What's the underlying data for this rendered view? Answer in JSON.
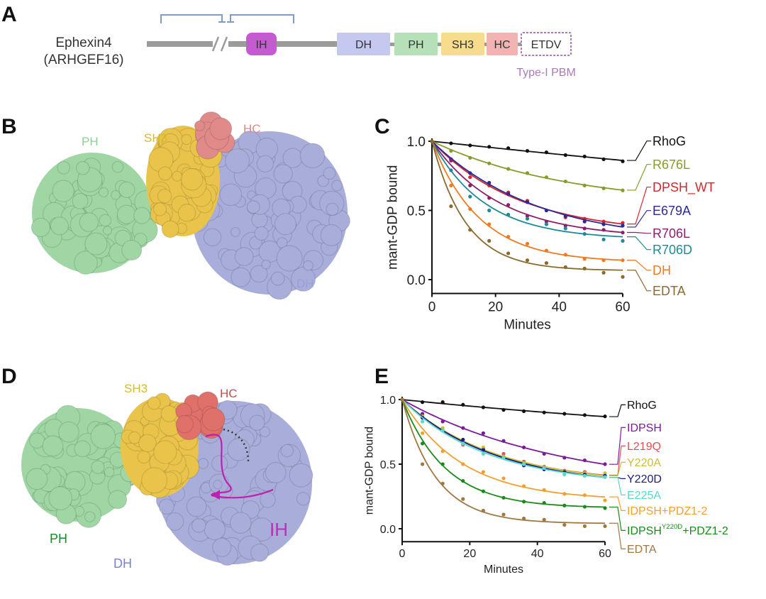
{
  "panel_labels": [
    "A",
    "B",
    "C",
    "D",
    "E"
  ],
  "panel_a": {
    "protein_name": "Ephexin4",
    "protein_alias": "(ARHGEF16)",
    "domains": [
      {
        "label": "IH",
        "color": "#c45bd0"
      },
      {
        "label": "DH",
        "color": "#c5c8ef"
      },
      {
        "label": "PH",
        "color": "#b5e0b8"
      },
      {
        "label": "SH3",
        "color": "#f7dc8e"
      },
      {
        "label": "HC",
        "color": "#f2b3b3"
      },
      {
        "label": "ETDV",
        "color": "#ffffff"
      }
    ],
    "motif_label": "Type-I PBM",
    "motif_color": "#a87bb5",
    "bracket_color": "#7f9cc4"
  },
  "panel_b": {
    "labels": [
      {
        "text": "PH",
        "color": "#8fcf96"
      },
      {
        "text": "SH3",
        "color": "#d9b730"
      },
      {
        "text": "HC",
        "color": "#d98b8b"
      },
      {
        "text": "DH",
        "color": "#9a9fd6"
      }
    ]
  },
  "panel_d": {
    "labels": [
      {
        "text": "SH3",
        "color": "#d9b730"
      },
      {
        "text": "HC",
        "color": "#c0504d"
      },
      {
        "text": "PH",
        "color": "#1a8a2a"
      },
      {
        "text": "DH",
        "color": "#7a80cc"
      },
      {
        "text": "IH",
        "color": "#c02cb8"
      }
    ]
  },
  "chart_data": [
    {
      "type": "line",
      "panel": "C",
      "xlabel": "Minutes",
      "ylabel": "mant-GDP bound",
      "xlim": [
        0,
        60
      ],
      "ylim": [
        -0.1,
        1.0
      ],
      "xticks": [
        0,
        20,
        40,
        60
      ],
      "yticks": [
        "0.0",
        "0.5",
        "1.0"
      ],
      "x": [
        0,
        6,
        12,
        18,
        24,
        30,
        36,
        42,
        48,
        54,
        60
      ],
      "series": [
        {
          "name": "RhoG",
          "color": "#111111",
          "values": [
            1,
            0.985,
            0.97,
            0.96,
            0.95,
            0.93,
            0.92,
            0.9,
            0.89,
            0.87,
            0.855
          ]
        },
        {
          "name": "R676L",
          "color": "#8a9a2a",
          "values": [
            1,
            0.93,
            0.88,
            0.84,
            0.8,
            0.77,
            0.74,
            0.71,
            0.68,
            0.66,
            0.645
          ]
        },
        {
          "name": "DPSH_WT",
          "color": "#d7262b",
          "values": [
            1,
            0.87,
            0.74,
            0.68,
            0.63,
            0.57,
            0.5,
            0.45,
            0.44,
            0.42,
            0.41
          ]
        },
        {
          "name": "E679A",
          "color": "#2a2a9a",
          "values": [
            1,
            0.87,
            0.77,
            0.7,
            0.62,
            0.56,
            0.5,
            0.46,
            0.42,
            0.4,
            0.39
          ]
        },
        {
          "name": "R706L",
          "color": "#8e1e6a",
          "values": [
            1,
            0.86,
            0.68,
            0.59,
            0.54,
            0.46,
            0.42,
            0.39,
            0.37,
            0.36,
            0.34
          ]
        },
        {
          "name": "R706D",
          "color": "#1e8a96",
          "values": [
            1,
            0.79,
            0.6,
            0.5,
            0.47,
            0.44,
            0.4,
            0.37,
            0.33,
            0.29,
            0.28
          ]
        },
        {
          "name": "DH",
          "color": "#f07a22",
          "values": [
            1,
            0.68,
            0.51,
            0.4,
            0.31,
            0.26,
            0.21,
            0.18,
            0.15,
            0.14,
            0.14
          ]
        },
        {
          "name": "EDTA",
          "color": "#8a6a2e",
          "values": [
            1,
            0.53,
            0.36,
            0.28,
            0.19,
            0.14,
            0.12,
            0.09,
            0.08,
            0.05,
            0.02
          ]
        }
      ]
    },
    {
      "type": "line",
      "panel": "E",
      "xlabel": "Minutes",
      "ylabel": "mant-GDP bound",
      "xlim": [
        0,
        60
      ],
      "ylim": [
        -0.1,
        1.0
      ],
      "xticks": [
        0,
        20,
        40,
        60
      ],
      "yticks": [
        "0.0",
        "0.5",
        "1.0"
      ],
      "x": [
        0,
        6,
        12,
        18,
        24,
        30,
        36,
        42,
        48,
        54,
        60
      ],
      "series": [
        {
          "name": "RhoG",
          "color": "#111111",
          "values": [
            1,
            0.98,
            0.98,
            0.96,
            0.94,
            0.92,
            0.91,
            0.9,
            0.89,
            0.88,
            0.87
          ]
        },
        {
          "name": "IDPSH",
          "color": "#7a1c9a",
          "values": [
            1,
            0.89,
            0.83,
            0.78,
            0.74,
            0.68,
            0.63,
            0.58,
            0.55,
            0.53,
            0.5
          ]
        },
        {
          "name": "L219Q",
          "color": "#e05050",
          "values": [
            1,
            0.86,
            0.76,
            0.65,
            0.62,
            0.58,
            0.52,
            0.48,
            0.45,
            0.44,
            0.4
          ]
        },
        {
          "name": "Y220A",
          "color": "#c8c030",
          "values": [
            1,
            0.87,
            0.78,
            0.67,
            0.63,
            0.56,
            0.51,
            0.47,
            0.44,
            0.43,
            0.43
          ]
        },
        {
          "name": "Y220D",
          "color": "#1a1a8a",
          "values": [
            1,
            0.86,
            0.76,
            0.69,
            0.61,
            0.55,
            0.49,
            0.46,
            0.44,
            0.42,
            0.41
          ]
        },
        {
          "name": "E225A",
          "color": "#5ad8c8",
          "values": [
            1,
            0.83,
            0.76,
            0.66,
            0.58,
            0.55,
            0.5,
            0.47,
            0.42,
            0.41,
            0.4
          ]
        },
        {
          "name": "IDPSH+PDZ1-2",
          "color": "#f0a030",
          "values": [
            1,
            0.74,
            0.6,
            0.5,
            0.44,
            0.39,
            0.33,
            0.3,
            0.27,
            0.26,
            0.22
          ]
        },
        {
          "name": "IDPSH",
          "superscript": "Y220D",
          "suffix": "+PDZ1-2",
          "color": "#1a8a1a",
          "values": [
            1,
            0.66,
            0.5,
            0.37,
            0.29,
            0.24,
            0.21,
            0.2,
            0.18,
            0.17,
            0.16
          ]
        },
        {
          "name": "EDTA",
          "color": "#a07840",
          "values": [
            1,
            0.5,
            0.35,
            0.23,
            0.14,
            0.11,
            0.08,
            0.07,
            0.03,
            0.02,
            0.02
          ]
        }
      ]
    }
  ]
}
